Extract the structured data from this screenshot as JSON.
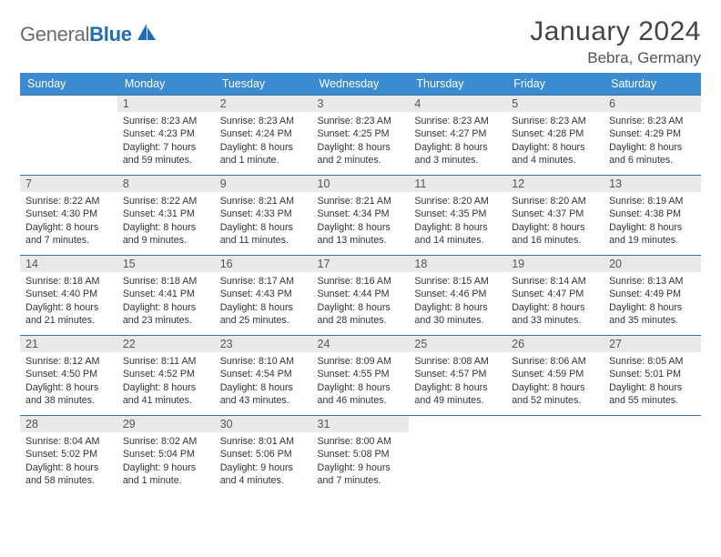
{
  "logo": {
    "t1": "General",
    "t2": "Blue"
  },
  "title": "January 2024",
  "location": "Bebra, Germany",
  "colors": {
    "header_bg": "#3b8bd0",
    "header_fg": "#ffffff",
    "daynum_bg": "#e9e9e9",
    "row_border": "#3b6fa0",
    "logo_gray": "#6b6b6b",
    "logo_blue": "#1f6db5"
  },
  "weekdays": [
    "Sunday",
    "Monday",
    "Tuesday",
    "Wednesday",
    "Thursday",
    "Friday",
    "Saturday"
  ],
  "weeks": [
    [
      null,
      {
        "n": "1",
        "l1": "Sunrise: 8:23 AM",
        "l2": "Sunset: 4:23 PM",
        "l3": "Daylight: 7 hours",
        "l4": "and 59 minutes."
      },
      {
        "n": "2",
        "l1": "Sunrise: 8:23 AM",
        "l2": "Sunset: 4:24 PM",
        "l3": "Daylight: 8 hours",
        "l4": "and 1 minute."
      },
      {
        "n": "3",
        "l1": "Sunrise: 8:23 AM",
        "l2": "Sunset: 4:25 PM",
        "l3": "Daylight: 8 hours",
        "l4": "and 2 minutes."
      },
      {
        "n": "4",
        "l1": "Sunrise: 8:23 AM",
        "l2": "Sunset: 4:27 PM",
        "l3": "Daylight: 8 hours",
        "l4": "and 3 minutes."
      },
      {
        "n": "5",
        "l1": "Sunrise: 8:23 AM",
        "l2": "Sunset: 4:28 PM",
        "l3": "Daylight: 8 hours",
        "l4": "and 4 minutes."
      },
      {
        "n": "6",
        "l1": "Sunrise: 8:23 AM",
        "l2": "Sunset: 4:29 PM",
        "l3": "Daylight: 8 hours",
        "l4": "and 6 minutes."
      }
    ],
    [
      {
        "n": "7",
        "l1": "Sunrise: 8:22 AM",
        "l2": "Sunset: 4:30 PM",
        "l3": "Daylight: 8 hours",
        "l4": "and 7 minutes."
      },
      {
        "n": "8",
        "l1": "Sunrise: 8:22 AM",
        "l2": "Sunset: 4:31 PM",
        "l3": "Daylight: 8 hours",
        "l4": "and 9 minutes."
      },
      {
        "n": "9",
        "l1": "Sunrise: 8:21 AM",
        "l2": "Sunset: 4:33 PM",
        "l3": "Daylight: 8 hours",
        "l4": "and 11 minutes."
      },
      {
        "n": "10",
        "l1": "Sunrise: 8:21 AM",
        "l2": "Sunset: 4:34 PM",
        "l3": "Daylight: 8 hours",
        "l4": "and 13 minutes."
      },
      {
        "n": "11",
        "l1": "Sunrise: 8:20 AM",
        "l2": "Sunset: 4:35 PM",
        "l3": "Daylight: 8 hours",
        "l4": "and 14 minutes."
      },
      {
        "n": "12",
        "l1": "Sunrise: 8:20 AM",
        "l2": "Sunset: 4:37 PM",
        "l3": "Daylight: 8 hours",
        "l4": "and 16 minutes."
      },
      {
        "n": "13",
        "l1": "Sunrise: 8:19 AM",
        "l2": "Sunset: 4:38 PM",
        "l3": "Daylight: 8 hours",
        "l4": "and 19 minutes."
      }
    ],
    [
      {
        "n": "14",
        "l1": "Sunrise: 8:18 AM",
        "l2": "Sunset: 4:40 PM",
        "l3": "Daylight: 8 hours",
        "l4": "and 21 minutes."
      },
      {
        "n": "15",
        "l1": "Sunrise: 8:18 AM",
        "l2": "Sunset: 4:41 PM",
        "l3": "Daylight: 8 hours",
        "l4": "and 23 minutes."
      },
      {
        "n": "16",
        "l1": "Sunrise: 8:17 AM",
        "l2": "Sunset: 4:43 PM",
        "l3": "Daylight: 8 hours",
        "l4": "and 25 minutes."
      },
      {
        "n": "17",
        "l1": "Sunrise: 8:16 AM",
        "l2": "Sunset: 4:44 PM",
        "l3": "Daylight: 8 hours",
        "l4": "and 28 minutes."
      },
      {
        "n": "18",
        "l1": "Sunrise: 8:15 AM",
        "l2": "Sunset: 4:46 PM",
        "l3": "Daylight: 8 hours",
        "l4": "and 30 minutes."
      },
      {
        "n": "19",
        "l1": "Sunrise: 8:14 AM",
        "l2": "Sunset: 4:47 PM",
        "l3": "Daylight: 8 hours",
        "l4": "and 33 minutes."
      },
      {
        "n": "20",
        "l1": "Sunrise: 8:13 AM",
        "l2": "Sunset: 4:49 PM",
        "l3": "Daylight: 8 hours",
        "l4": "and 35 minutes."
      }
    ],
    [
      {
        "n": "21",
        "l1": "Sunrise: 8:12 AM",
        "l2": "Sunset: 4:50 PM",
        "l3": "Daylight: 8 hours",
        "l4": "and 38 minutes."
      },
      {
        "n": "22",
        "l1": "Sunrise: 8:11 AM",
        "l2": "Sunset: 4:52 PM",
        "l3": "Daylight: 8 hours",
        "l4": "and 41 minutes."
      },
      {
        "n": "23",
        "l1": "Sunrise: 8:10 AM",
        "l2": "Sunset: 4:54 PM",
        "l3": "Daylight: 8 hours",
        "l4": "and 43 minutes."
      },
      {
        "n": "24",
        "l1": "Sunrise: 8:09 AM",
        "l2": "Sunset: 4:55 PM",
        "l3": "Daylight: 8 hours",
        "l4": "and 46 minutes."
      },
      {
        "n": "25",
        "l1": "Sunrise: 8:08 AM",
        "l2": "Sunset: 4:57 PM",
        "l3": "Daylight: 8 hours",
        "l4": "and 49 minutes."
      },
      {
        "n": "26",
        "l1": "Sunrise: 8:06 AM",
        "l2": "Sunset: 4:59 PM",
        "l3": "Daylight: 8 hours",
        "l4": "and 52 minutes."
      },
      {
        "n": "27",
        "l1": "Sunrise: 8:05 AM",
        "l2": "Sunset: 5:01 PM",
        "l3": "Daylight: 8 hours",
        "l4": "and 55 minutes."
      }
    ],
    [
      {
        "n": "28",
        "l1": "Sunrise: 8:04 AM",
        "l2": "Sunset: 5:02 PM",
        "l3": "Daylight: 8 hours",
        "l4": "and 58 minutes."
      },
      {
        "n": "29",
        "l1": "Sunrise: 8:02 AM",
        "l2": "Sunset: 5:04 PM",
        "l3": "Daylight: 9 hours",
        "l4": "and 1 minute."
      },
      {
        "n": "30",
        "l1": "Sunrise: 8:01 AM",
        "l2": "Sunset: 5:06 PM",
        "l3": "Daylight: 9 hours",
        "l4": "and 4 minutes."
      },
      {
        "n": "31",
        "l1": "Sunrise: 8:00 AM",
        "l2": "Sunset: 5:08 PM",
        "l3": "Daylight: 9 hours",
        "l4": "and 7 minutes."
      },
      null,
      null,
      null
    ]
  ]
}
